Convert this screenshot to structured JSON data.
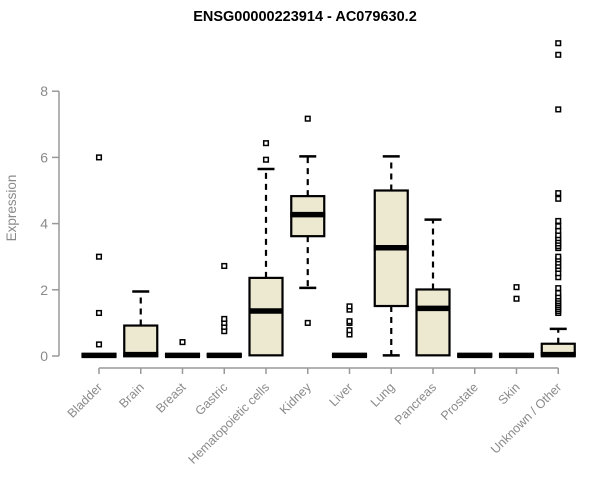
{
  "chart_data": {
    "type": "boxplot",
    "title": "ENSG00000223914 - AC079630.2",
    "ylabel": "Expression",
    "xlabel": "",
    "ylim": [
      0,
      9.6
    ],
    "yticks": [
      0,
      2,
      4,
      6,
      8
    ],
    "grid": false,
    "legend_position": "none",
    "categories": [
      "Bladder",
      "Brain",
      "Breast",
      "Gastric",
      "Hematopoietic cells",
      "Kidney",
      "Liver",
      "Lung",
      "Pancreas",
      "Prostate",
      "Skin",
      "Unknown / Other"
    ],
    "series": [
      {
        "name": "Bladder",
        "whisker_low": 0,
        "q1": 0,
        "median": 0.02,
        "q3": 0.05,
        "whisker_high": 0.05,
        "outliers": [
          0.35,
          1.3,
          3.0,
          6.0
        ]
      },
      {
        "name": "Brain",
        "whisker_low": 0,
        "q1": 0,
        "median": 0.04,
        "q3": 0.92,
        "whisker_high": 1.95,
        "outliers": []
      },
      {
        "name": "Breast",
        "whisker_low": 0,
        "q1": 0,
        "median": 0.02,
        "q3": 0.05,
        "whisker_high": 0.05,
        "outliers": [
          0.42
        ]
      },
      {
        "name": "Gastric",
        "whisker_low": 0,
        "q1": 0,
        "median": 0.02,
        "q3": 0.05,
        "whisker_high": 0.05,
        "outliers": [
          0.75,
          0.88,
          1.0,
          1.12,
          2.72
        ]
      },
      {
        "name": "Hematopoietic cells",
        "whisker_low": 0.02,
        "q1": 0.02,
        "median": 1.36,
        "q3": 2.36,
        "whisker_high": 5.65,
        "outliers": [
          5.93,
          6.43
        ]
      },
      {
        "name": "Kidney",
        "whisker_low": 2.06,
        "q1": 3.62,
        "median": 4.27,
        "q3": 4.83,
        "whisker_high": 6.03,
        "outliers": [
          1.0,
          7.17
        ]
      },
      {
        "name": "Liver",
        "whisker_low": 0,
        "q1": 0,
        "median": 0.02,
        "q3": 0.05,
        "whisker_high": 0.05,
        "outliers": [
          0.65,
          0.78,
          1.0,
          1.05,
          1.4,
          1.5
        ]
      },
      {
        "name": "Lung",
        "whisker_low": 0.02,
        "q1": 1.51,
        "median": 3.27,
        "q3": 5.0,
        "whisker_high": 6.03,
        "outliers": []
      },
      {
        "name": "Pancreas",
        "whisker_low": 0.02,
        "q1": 0.02,
        "median": 1.44,
        "q3": 2.01,
        "whisker_high": 4.12,
        "outliers": []
      },
      {
        "name": "Prostate",
        "whisker_low": 0,
        "q1": 0,
        "median": 0.02,
        "q3": 0.05,
        "whisker_high": 0.05,
        "outliers": []
      },
      {
        "name": "Skin",
        "whisker_low": 0,
        "q1": 0,
        "median": 0.02,
        "q3": 0.05,
        "whisker_high": 0.05,
        "outliers": [
          1.73,
          2.08
        ]
      },
      {
        "name": "Unknown / Other",
        "whisker_low": 0.02,
        "q1": 0.02,
        "median": 0.04,
        "q3": 0.37,
        "whisker_high": 0.82,
        "outliers": [
          1.3,
          1.36,
          1.42,
          1.48,
          1.54,
          1.6,
          1.66,
          1.73,
          1.8,
          1.9,
          2.05,
          2.38,
          2.5,
          2.63,
          2.72,
          2.82,
          2.92,
          3.0,
          3.26,
          3.32,
          3.4,
          3.48,
          3.56,
          3.65,
          3.78,
          3.92,
          4.08,
          4.75,
          4.92,
          7.45,
          9.1,
          9.45
        ]
      }
    ],
    "colors": {
      "box_fill": "#EDE8D0",
      "box_border": "#000000",
      "median": "#000000",
      "whisker": "#000000",
      "outlier_stroke": "#000000",
      "outlier_fill": "#FFFFFF",
      "axis": "#999999",
      "tick_text": "#8A8A8A",
      "title": "#000000",
      "background": "#FFFFFF"
    }
  }
}
